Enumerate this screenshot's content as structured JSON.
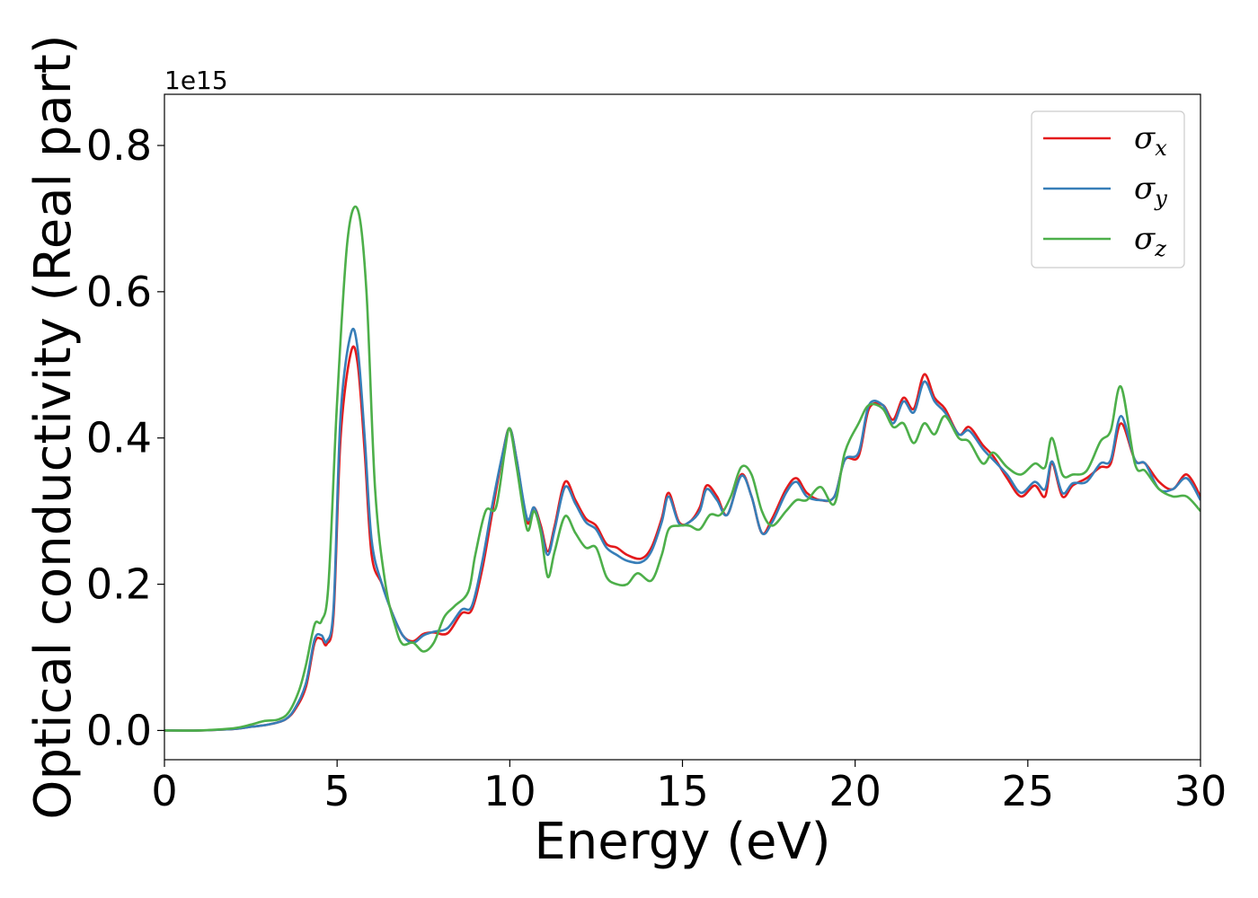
{
  "chart_data": {
    "type": "line",
    "xlabel": "Energy (eV)",
    "ylabel": "Optical conductivity (Real part)",
    "y_offset_text": "1e15",
    "xlim": [
      0,
      30
    ],
    "ylim": [
      -0.04,
      0.87
    ],
    "x_ticks": [
      0,
      5,
      10,
      15,
      20,
      25,
      30
    ],
    "x_tick_labels": [
      "0",
      "5",
      "10",
      "15",
      "20",
      "25",
      "30"
    ],
    "y_ticks": [
      0.0,
      0.2,
      0.4,
      0.6,
      0.8
    ],
    "y_tick_labels": [
      "0.0",
      "0.2",
      "0.4",
      "0.6",
      "0.8"
    ],
    "grid": false,
    "legend_position": "top-right",
    "series": [
      {
        "name": "σx",
        "symbol": "σ",
        "subscript": "x",
        "color": "#e41a1c",
        "points": [
          [
            0,
            0.0
          ],
          [
            1,
            0.0
          ],
          [
            2,
            0.002
          ],
          [
            2.5,
            0.005
          ],
          [
            3,
            0.008
          ],
          [
            3.5,
            0.015
          ],
          [
            3.8,
            0.03
          ],
          [
            4.1,
            0.06
          ],
          [
            4.35,
            0.12
          ],
          [
            4.55,
            0.125
          ],
          [
            4.7,
            0.118
          ],
          [
            4.9,
            0.16
          ],
          [
            5.1,
            0.4
          ],
          [
            5.4,
            0.517
          ],
          [
            5.6,
            0.5
          ],
          [
            5.8,
            0.38
          ],
          [
            6.0,
            0.24
          ],
          [
            6.3,
            0.2
          ],
          [
            6.6,
            0.16
          ],
          [
            6.9,
            0.13
          ],
          [
            7.2,
            0.122
          ],
          [
            7.5,
            0.132
          ],
          [
            7.8,
            0.134
          ],
          [
            8.2,
            0.133
          ],
          [
            8.6,
            0.16
          ],
          [
            8.9,
            0.165
          ],
          [
            9.2,
            0.22
          ],
          [
            9.5,
            0.3
          ],
          [
            9.8,
            0.38
          ],
          [
            10.0,
            0.413
          ],
          [
            10.2,
            0.37
          ],
          [
            10.5,
            0.285
          ],
          [
            10.7,
            0.305
          ],
          [
            10.9,
            0.28
          ],
          [
            11.1,
            0.245
          ],
          [
            11.3,
            0.28
          ],
          [
            11.6,
            0.34
          ],
          [
            11.9,
            0.315
          ],
          [
            12.2,
            0.29
          ],
          [
            12.5,
            0.28
          ],
          [
            12.8,
            0.255
          ],
          [
            13.1,
            0.25
          ],
          [
            13.4,
            0.24
          ],
          [
            13.8,
            0.235
          ],
          [
            14.1,
            0.25
          ],
          [
            14.4,
            0.29
          ],
          [
            14.6,
            0.325
          ],
          [
            14.9,
            0.285
          ],
          [
            15.2,
            0.285
          ],
          [
            15.5,
            0.305
          ],
          [
            15.7,
            0.335
          ],
          [
            16.0,
            0.32
          ],
          [
            16.3,
            0.295
          ],
          [
            16.7,
            0.35
          ],
          [
            17.0,
            0.32
          ],
          [
            17.3,
            0.27
          ],
          [
            17.6,
            0.29
          ],
          [
            18.0,
            0.33
          ],
          [
            18.3,
            0.345
          ],
          [
            18.6,
            0.325
          ],
          [
            19.0,
            0.315
          ],
          [
            19.4,
            0.32
          ],
          [
            19.7,
            0.37
          ],
          [
            20.1,
            0.375
          ],
          [
            20.4,
            0.44
          ],
          [
            20.8,
            0.445
          ],
          [
            21.1,
            0.425
          ],
          [
            21.4,
            0.455
          ],
          [
            21.7,
            0.44
          ],
          [
            22.0,
            0.487
          ],
          [
            22.3,
            0.455
          ],
          [
            22.6,
            0.44
          ],
          [
            23.0,
            0.405
          ],
          [
            23.3,
            0.415
          ],
          [
            23.7,
            0.39
          ],
          [
            24.0,
            0.375
          ],
          [
            24.4,
            0.345
          ],
          [
            24.8,
            0.32
          ],
          [
            25.2,
            0.335
          ],
          [
            25.5,
            0.32
          ],
          [
            25.7,
            0.365
          ],
          [
            26.0,
            0.32
          ],
          [
            26.3,
            0.335
          ],
          [
            26.7,
            0.345
          ],
          [
            27.1,
            0.36
          ],
          [
            27.4,
            0.365
          ],
          [
            27.7,
            0.42
          ],
          [
            28.1,
            0.37
          ],
          [
            28.4,
            0.365
          ],
          [
            28.8,
            0.34
          ],
          [
            29.2,
            0.33
          ],
          [
            29.6,
            0.35
          ],
          [
            30.0,
            0.32
          ]
        ]
      },
      {
        "name": "σy",
        "symbol": "σ",
        "subscript": "y",
        "color": "#377eb8",
        "points": [
          [
            0,
            0.0
          ],
          [
            1,
            0.0
          ],
          [
            2,
            0.002
          ],
          [
            2.5,
            0.005
          ],
          [
            3,
            0.008
          ],
          [
            3.5,
            0.015
          ],
          [
            3.8,
            0.032
          ],
          [
            4.1,
            0.065
          ],
          [
            4.35,
            0.125
          ],
          [
            4.55,
            0.13
          ],
          [
            4.7,
            0.122
          ],
          [
            4.9,
            0.17
          ],
          [
            5.1,
            0.43
          ],
          [
            5.4,
            0.543
          ],
          [
            5.6,
            0.52
          ],
          [
            5.8,
            0.4
          ],
          [
            6.0,
            0.26
          ],
          [
            6.3,
            0.2
          ],
          [
            6.6,
            0.16
          ],
          [
            6.9,
            0.13
          ],
          [
            7.2,
            0.12
          ],
          [
            7.5,
            0.13
          ],
          [
            7.8,
            0.135
          ],
          [
            8.2,
            0.14
          ],
          [
            8.6,
            0.165
          ],
          [
            8.9,
            0.17
          ],
          [
            9.2,
            0.23
          ],
          [
            9.5,
            0.31
          ],
          [
            9.8,
            0.38
          ],
          [
            10.0,
            0.413
          ],
          [
            10.2,
            0.37
          ],
          [
            10.5,
            0.29
          ],
          [
            10.7,
            0.305
          ],
          [
            10.9,
            0.275
          ],
          [
            11.1,
            0.24
          ],
          [
            11.3,
            0.275
          ],
          [
            11.6,
            0.333
          ],
          [
            11.9,
            0.31
          ],
          [
            12.2,
            0.285
          ],
          [
            12.5,
            0.275
          ],
          [
            12.8,
            0.25
          ],
          [
            13.1,
            0.24
          ],
          [
            13.4,
            0.232
          ],
          [
            13.8,
            0.23
          ],
          [
            14.1,
            0.245
          ],
          [
            14.4,
            0.285
          ],
          [
            14.6,
            0.32
          ],
          [
            14.9,
            0.283
          ],
          [
            15.2,
            0.285
          ],
          [
            15.5,
            0.3
          ],
          [
            15.7,
            0.33
          ],
          [
            16.0,
            0.315
          ],
          [
            16.3,
            0.295
          ],
          [
            16.7,
            0.348
          ],
          [
            17.0,
            0.32
          ],
          [
            17.3,
            0.27
          ],
          [
            17.6,
            0.285
          ],
          [
            18.0,
            0.325
          ],
          [
            18.3,
            0.34
          ],
          [
            18.6,
            0.32
          ],
          [
            19.0,
            0.315
          ],
          [
            19.4,
            0.32
          ],
          [
            19.7,
            0.37
          ],
          [
            20.1,
            0.38
          ],
          [
            20.4,
            0.445
          ],
          [
            20.8,
            0.445
          ],
          [
            21.1,
            0.42
          ],
          [
            21.4,
            0.45
          ],
          [
            21.7,
            0.435
          ],
          [
            22.0,
            0.477
          ],
          [
            22.3,
            0.45
          ],
          [
            22.6,
            0.435
          ],
          [
            23.0,
            0.405
          ],
          [
            23.3,
            0.41
          ],
          [
            23.7,
            0.385
          ],
          [
            24.0,
            0.37
          ],
          [
            24.4,
            0.35
          ],
          [
            24.8,
            0.325
          ],
          [
            25.2,
            0.34
          ],
          [
            25.5,
            0.33
          ],
          [
            25.7,
            0.368
          ],
          [
            26.0,
            0.325
          ],
          [
            26.3,
            0.338
          ],
          [
            26.7,
            0.34
          ],
          [
            27.1,
            0.365
          ],
          [
            27.4,
            0.37
          ],
          [
            27.7,
            0.43
          ],
          [
            28.1,
            0.37
          ],
          [
            28.4,
            0.365
          ],
          [
            28.8,
            0.33
          ],
          [
            29.2,
            0.33
          ],
          [
            29.6,
            0.345
          ],
          [
            30.0,
            0.315
          ]
        ]
      },
      {
        "name": "σz",
        "symbol": "σ",
        "subscript": "z",
        "color": "#4daf4a",
        "points": [
          [
            0,
            0.0
          ],
          [
            1,
            0.0
          ],
          [
            2,
            0.003
          ],
          [
            2.5,
            0.008
          ],
          [
            2.9,
            0.013
          ],
          [
            3.3,
            0.015
          ],
          [
            3.6,
            0.025
          ],
          [
            3.9,
            0.055
          ],
          [
            4.1,
            0.09
          ],
          [
            4.35,
            0.145
          ],
          [
            4.55,
            0.15
          ],
          [
            4.75,
            0.2
          ],
          [
            5.0,
            0.45
          ],
          [
            5.3,
            0.67
          ],
          [
            5.6,
            0.712
          ],
          [
            5.85,
            0.6
          ],
          [
            6.1,
            0.33
          ],
          [
            6.4,
            0.2
          ],
          [
            6.7,
            0.14
          ],
          [
            6.9,
            0.118
          ],
          [
            7.2,
            0.12
          ],
          [
            7.5,
            0.108
          ],
          [
            7.8,
            0.12
          ],
          [
            8.1,
            0.155
          ],
          [
            8.4,
            0.17
          ],
          [
            8.8,
            0.19
          ],
          [
            9.0,
            0.24
          ],
          [
            9.3,
            0.3
          ],
          [
            9.6,
            0.305
          ],
          [
            9.85,
            0.38
          ],
          [
            10.0,
            0.413
          ],
          [
            10.2,
            0.36
          ],
          [
            10.5,
            0.275
          ],
          [
            10.7,
            0.3
          ],
          [
            10.9,
            0.27
          ],
          [
            11.1,
            0.21
          ],
          [
            11.3,
            0.245
          ],
          [
            11.6,
            0.293
          ],
          [
            11.9,
            0.27
          ],
          [
            12.2,
            0.25
          ],
          [
            12.5,
            0.25
          ],
          [
            12.8,
            0.21
          ],
          [
            13.1,
            0.2
          ],
          [
            13.4,
            0.2
          ],
          [
            13.7,
            0.215
          ],
          [
            14.1,
            0.205
          ],
          [
            14.4,
            0.24
          ],
          [
            14.6,
            0.275
          ],
          [
            14.9,
            0.28
          ],
          [
            15.2,
            0.28
          ],
          [
            15.5,
            0.275
          ],
          [
            15.8,
            0.295
          ],
          [
            16.1,
            0.295
          ],
          [
            16.4,
            0.32
          ],
          [
            16.7,
            0.36
          ],
          [
            17.0,
            0.35
          ],
          [
            17.3,
            0.3
          ],
          [
            17.6,
            0.28
          ],
          [
            18.0,
            0.3
          ],
          [
            18.3,
            0.315
          ],
          [
            18.6,
            0.315
          ],
          [
            19.0,
            0.333
          ],
          [
            19.4,
            0.31
          ],
          [
            19.7,
            0.38
          ],
          [
            20.1,
            0.42
          ],
          [
            20.4,
            0.445
          ],
          [
            20.8,
            0.44
          ],
          [
            21.1,
            0.415
          ],
          [
            21.4,
            0.42
          ],
          [
            21.7,
            0.393
          ],
          [
            22.0,
            0.42
          ],
          [
            22.3,
            0.405
          ],
          [
            22.6,
            0.43
          ],
          [
            23.0,
            0.4
          ],
          [
            23.3,
            0.395
          ],
          [
            23.7,
            0.365
          ],
          [
            24.0,
            0.38
          ],
          [
            24.4,
            0.36
          ],
          [
            24.8,
            0.35
          ],
          [
            25.2,
            0.365
          ],
          [
            25.5,
            0.36
          ],
          [
            25.7,
            0.4
          ],
          [
            26.0,
            0.35
          ],
          [
            26.3,
            0.35
          ],
          [
            26.7,
            0.355
          ],
          [
            27.1,
            0.395
          ],
          [
            27.4,
            0.41
          ],
          [
            27.7,
            0.47
          ],
          [
            28.1,
            0.365
          ],
          [
            28.4,
            0.355
          ],
          [
            28.8,
            0.33
          ],
          [
            29.2,
            0.32
          ],
          [
            29.6,
            0.32
          ],
          [
            30.0,
            0.3
          ]
        ]
      }
    ]
  }
}
